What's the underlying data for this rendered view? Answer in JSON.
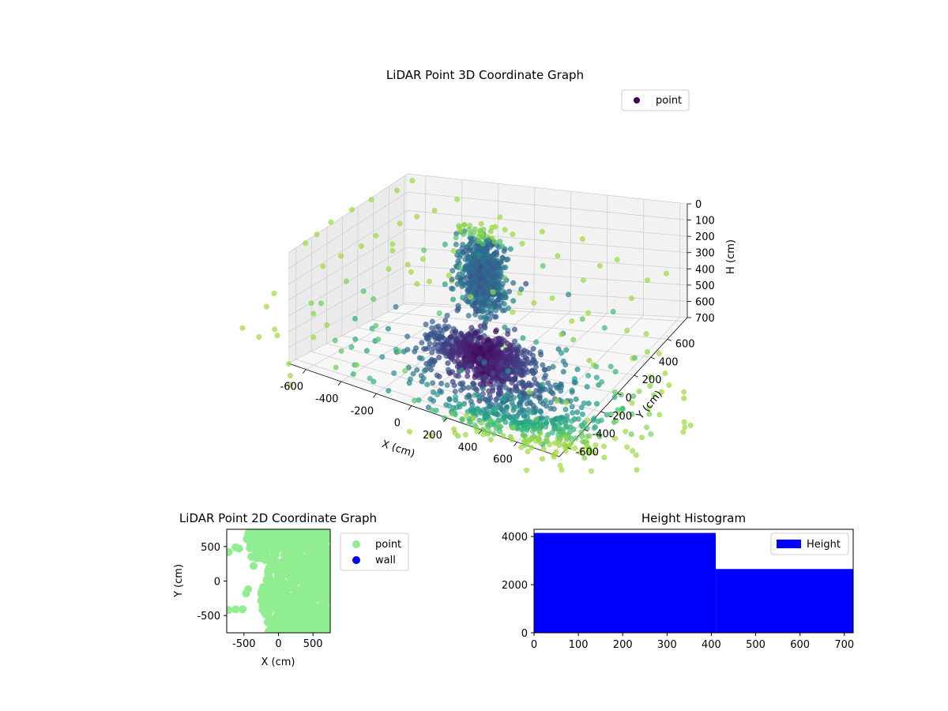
{
  "chart_data": [
    {
      "id": "lidar-3d",
      "type": "scatter",
      "title": "LiDAR Point 3D Coordinate Graph",
      "xlabel": "X (cm)",
      "ylabel": "Y (cm)",
      "zlabel": "H (cm)",
      "xlim": [
        -700,
        700
      ],
      "ylim": [
        -700,
        700
      ],
      "zlim": [
        700,
        0
      ],
      "x_ticks": [
        "-600",
        "-400",
        "-200",
        "0",
        "200",
        "400",
        "600"
      ],
      "y_ticks": [
        "-600",
        "-400",
        "-200",
        "0",
        "200",
        "400",
        "600"
      ],
      "z_ticks": [
        "0",
        "100",
        "200",
        "300",
        "400",
        "500",
        "600",
        "700"
      ],
      "legend": {
        "position": "top-right",
        "entries": [
          "point"
        ]
      },
      "colormap": "viridis",
      "series": [
        {
          "name": "point",
          "color": "#440154",
          "clusters": [
            {
              "x": -150,
              "y": 350,
              "z": 250,
              "spread": [
                55,
                55,
                110
              ],
              "count": 650
            },
            {
              "x": -20,
              "y": 60,
              "z": 590,
              "spread": [
                130,
                90,
                45
              ],
              "count": 750
            },
            {
              "x": 200,
              "y": -150,
              "z": 660,
              "spread": [
                260,
                260,
                40
              ],
              "count": 260
            },
            {
              "x": 420,
              "y": -450,
              "z": 690,
              "spread": [
                220,
                180,
                12
              ],
              "count": 300
            }
          ],
          "grid_points": {
            "z": 0,
            "spacing": 220
          }
        }
      ]
    },
    {
      "id": "lidar-2d",
      "type": "scatter",
      "title": "LiDAR Point 2D Coordinate Graph",
      "xlabel": "X (cm)",
      "ylabel": "Y (cm)",
      "xlim": [
        -750,
        750
      ],
      "ylim": [
        -750,
        750
      ],
      "x_ticks": [
        -500,
        0,
        500
      ],
      "y_ticks": [
        -500,
        0,
        500
      ],
      "legend": {
        "position": "outside-right",
        "entries": [
          "point",
          "wall"
        ]
      },
      "series": [
        {
          "name": "point",
          "color": "#90ee90"
        },
        {
          "name": "wall",
          "color": "#0000ff"
        }
      ]
    },
    {
      "id": "height-histogram",
      "type": "bar",
      "title": "Height Histogram",
      "xlim": [
        0,
        720
      ],
      "ylim": [
        0,
        4300
      ],
      "x_ticks": [
        0,
        100,
        200,
        300,
        400,
        500,
        600,
        700
      ],
      "y_ticks": [
        0,
        2000,
        4000
      ],
      "legend": {
        "position": "top-right",
        "entries": [
          "Height"
        ]
      },
      "series": [
        {
          "name": "Height",
          "color": "#0000ff",
          "bins": [
            {
              "from": 0,
              "to": 410,
              "count": 4150
            },
            {
              "from": 410,
              "to": 720,
              "count": 2650
            }
          ]
        }
      ]
    }
  ]
}
